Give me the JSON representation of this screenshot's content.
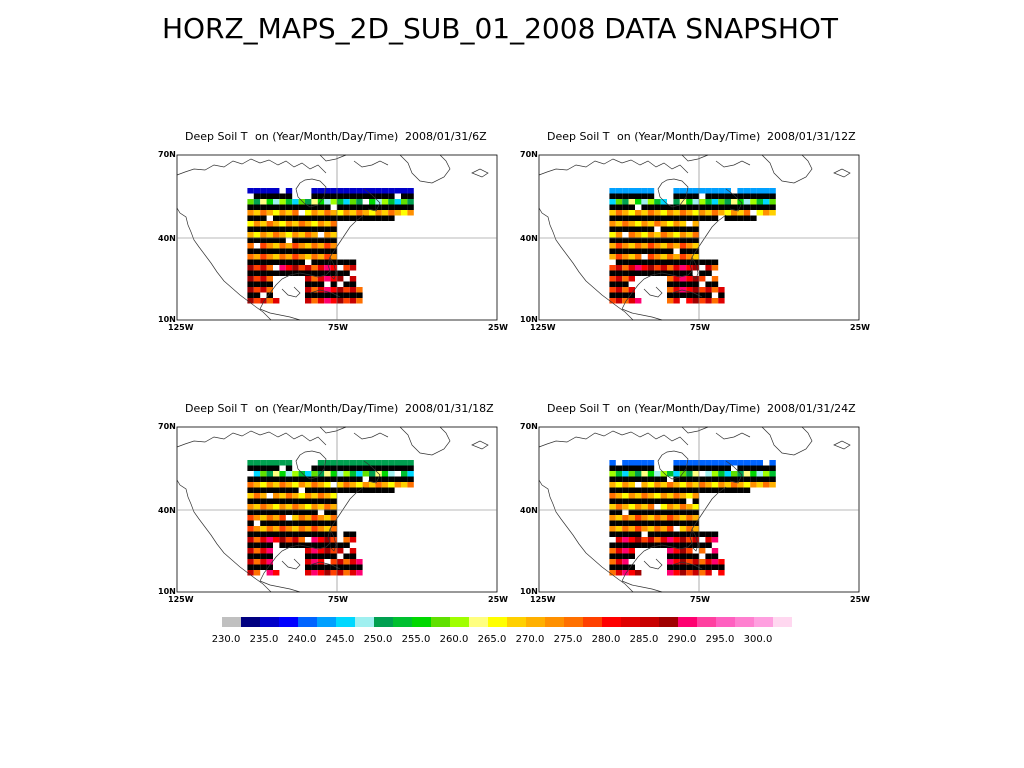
{
  "page": {
    "title": "HORZ_MAPS_2D_SUB_01_2008 DATA SNAPSHOT"
  },
  "map_labels": {
    "lat_top": "70N",
    "lat_mid": "40N",
    "lat_bottom": "10N",
    "lon_left": "125W",
    "lon_mid": "75W",
    "lon_right": "25W"
  },
  "panels": [
    {
      "variable": "Deep Soil T",
      "on_label": "on (Year/Month/Day/Time)",
      "time": "2008/01/31/6Z"
    },
    {
      "variable": "Deep Soil T",
      "on_label": "on (Year/Month/Day/Time)",
      "time": "2008/01/31/12Z"
    },
    {
      "variable": "Deep Soil T",
      "on_label": "on (Year/Month/Day/Time)",
      "time": "2008/01/31/18Z"
    },
    {
      "variable": "Deep Soil T",
      "on_label": "on (Year/Month/Day/Time)",
      "time": "2008/01/31/24Z"
    }
  ],
  "colorbar": {
    "colors": [
      "#c0c0c0",
      "#000080",
      "#0000c8",
      "#0000ff",
      "#0064ff",
      "#00a0ff",
      "#00d8ff",
      "#a0f0f0",
      "#00a050",
      "#00c030",
      "#00d800",
      "#60e000",
      "#a0ff00",
      "#ffff80",
      "#ffff00",
      "#ffd000",
      "#ffb000",
      "#ff9000",
      "#ff7000",
      "#ff4000",
      "#ff0000",
      "#e00000",
      "#c80000",
      "#a00000",
      "#ff0070",
      "#ff40a0",
      "#ff60c0",
      "#ff80d0",
      "#ffa0e0",
      "#ffd8f0"
    ],
    "tick_labels": [
      "230.0",
      "235.0",
      "240.0",
      "245.0",
      "250.0",
      "255.0",
      "260.0",
      "265.0",
      "270.0",
      "275.0",
      "280.0",
      "285.0",
      "290.0",
      "295.0",
      "300.0"
    ]
  }
}
